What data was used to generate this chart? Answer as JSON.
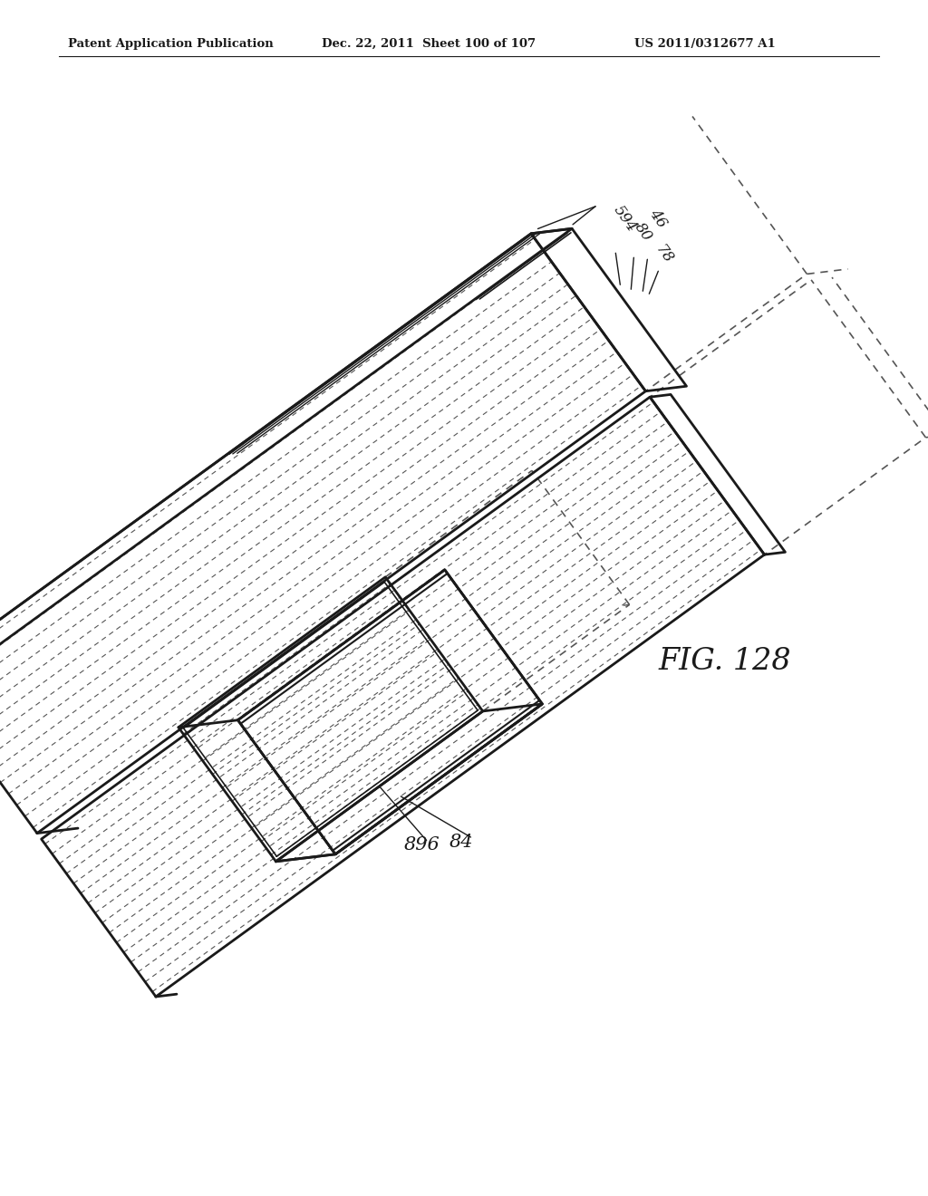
{
  "title_left": "Patent Application Publication",
  "title_mid": "Dec. 22, 2011  Sheet 100 of 107",
  "title_right": "US 2011/0312677 A1",
  "fig_label": "FIG. 128",
  "background_color": "#ffffff",
  "line_color": "#1a1a1a",
  "dashed_color": "#555555",
  "label_84": "84",
  "label_896": "896",
  "label_594": "594",
  "label_80": "80",
  "label_46": "46",
  "label_78": "78"
}
